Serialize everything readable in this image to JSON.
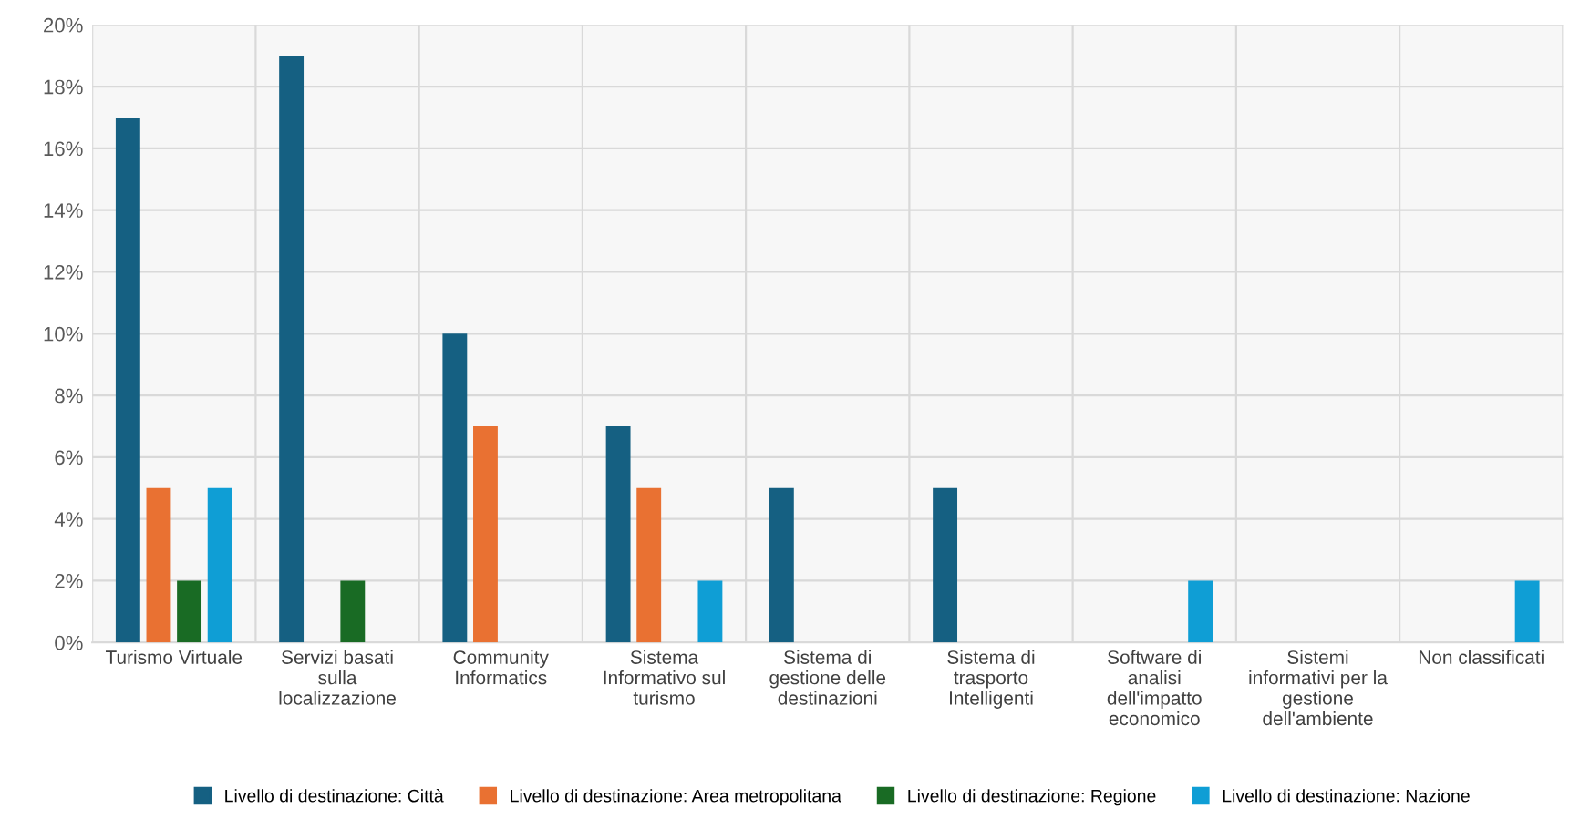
{
  "chart_data": {
    "type": "bar",
    "categories": [
      "Turismo Virtuale",
      "Servizi basati\nsulla\nlocalizzazione",
      "Community\nInformatics",
      "Sistema\nInformativo sul\nturismo",
      "Sistema di\ngestione delle\ndestinazioni",
      "Sistema di\ntrasporto\nIntelligenti",
      "Software di\nanalisi\ndell'impatto\neconomico",
      "Sistemi\ninformativi per la\ngestione\ndell'ambiente",
      "Non classificati"
    ],
    "series": [
      {
        "name": "Livello di destinazione: Città",
        "color": "#156082",
        "values": [
          17,
          19,
          10,
          7,
          5,
          5,
          null,
          null,
          null
        ]
      },
      {
        "name": "Livello di destinazione: Area metropolitana",
        "color": "#e97132",
        "values": [
          5,
          null,
          7,
          5,
          null,
          null,
          null,
          null,
          null
        ]
      },
      {
        "name": "Livello di destinazione: Regione",
        "color": "#196b24",
        "values": [
          2,
          2,
          null,
          null,
          null,
          null,
          null,
          null,
          null
        ]
      },
      {
        "name": "Livello di destinazione: Nazione",
        "color": "#0f9ed5",
        "values": [
          5,
          null,
          null,
          2,
          null,
          null,
          2,
          null,
          2
        ]
      }
    ],
    "ylim": [
      0,
      20
    ],
    "yticks": [
      {
        "value": 0,
        "label": "0%"
      },
      {
        "value": 2,
        "label": "2%"
      },
      {
        "value": 4,
        "label": "4%"
      },
      {
        "value": 6,
        "label": "6%"
      },
      {
        "value": 8,
        "label": "8%"
      },
      {
        "value": 10,
        "label": "10%"
      },
      {
        "value": 12,
        "label": "12%"
      },
      {
        "value": 14,
        "label": "14%"
      },
      {
        "value": 16,
        "label": "16%"
      },
      {
        "value": 18,
        "label": "18%"
      },
      {
        "value": 20,
        "label": "20%"
      }
    ],
    "grid": true,
    "legend": "bottom"
  }
}
